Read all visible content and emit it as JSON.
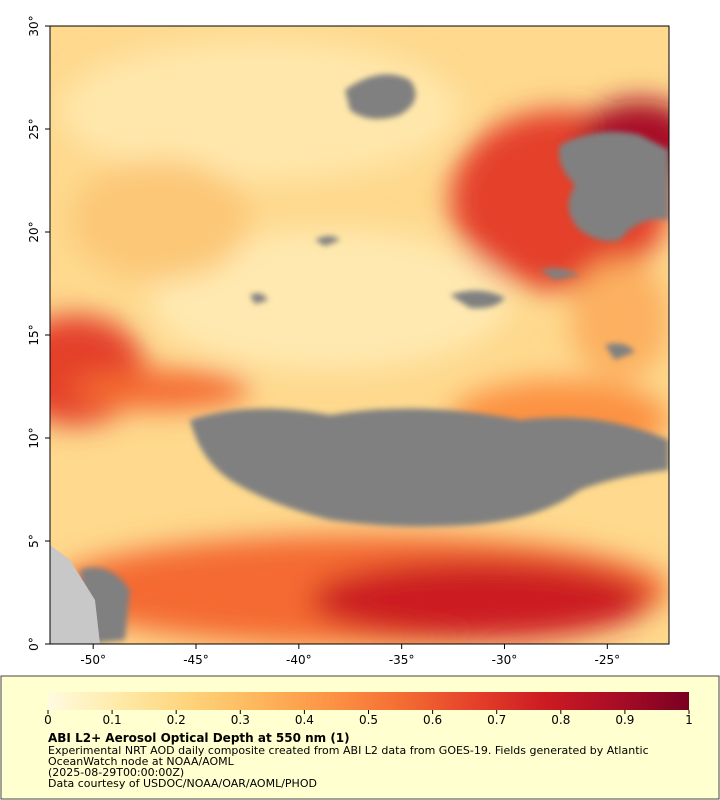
{
  "chart_data": {
    "type": "map",
    "xlim": [
      -52.1,
      -22.0
    ],
    "ylim": [
      0,
      30
    ],
    "xticks": [
      {
        "value": -50,
        "label": "-50°"
      },
      {
        "value": -45,
        "label": "-45°"
      },
      {
        "value": -40,
        "label": "-40°"
      },
      {
        "value": -35,
        "label": "-35°"
      },
      {
        "value": -30,
        "label": "-30°"
      },
      {
        "value": -25,
        "label": "-25°"
      }
    ],
    "yticks": [
      {
        "value": 0,
        "label": "0°"
      },
      {
        "value": 5,
        "label": "5°"
      },
      {
        "value": 10,
        "label": "10°"
      },
      {
        "value": 15,
        "label": "15°"
      },
      {
        "value": 20,
        "label": "20°"
      },
      {
        "value": 25,
        "label": "25°"
      },
      {
        "value": 30,
        "label": "30°"
      }
    ],
    "colorbar": {
      "range": [
        0,
        1
      ],
      "ticks": [
        0,
        0.1,
        0.2,
        0.3,
        0.4,
        0.5,
        0.6,
        0.7,
        0.8,
        0.9,
        1
      ],
      "colors": [
        "#fffbe0",
        "#ffeaa8",
        "#fed37a",
        "#fdb55a",
        "#fc9243",
        "#f46b33",
        "#e4402a",
        "#cc1a22",
        "#a80d26",
        "#7a0022"
      ]
    },
    "title": "ABI L2+ Aerosol Optical Depth at 550 nm (1)",
    "caption": [
      "Experimental NRT AOD daily composite created from ABI L2 data from GOES-19. Fields generated by Atlantic",
      "OceanWatch node at NOAA/AOML",
      "(2025-08-29T00:00:00Z)",
      "Data courtesy of USDOC/NOAA/OAR/AOML/PHOD"
    ]
  }
}
